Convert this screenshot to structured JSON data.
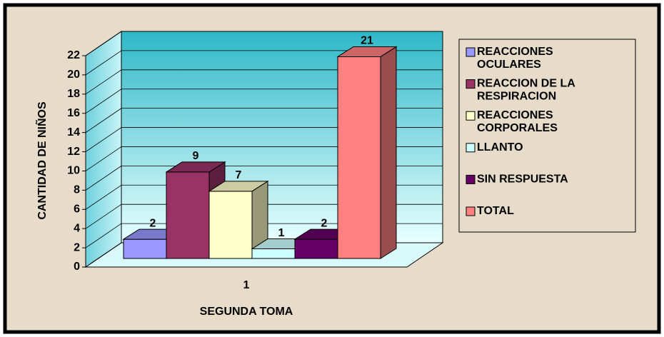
{
  "chart_data": {
    "type": "bar3d",
    "xlabel": "SEGUNDA TOMA",
    "ylabel": "CANTIDAD DE NIÑOS",
    "categories": [
      "1"
    ],
    "series": [
      {
        "name": "REACCIONES OCULARES",
        "color": "#9999ff",
        "values": [
          2
        ]
      },
      {
        "name": "REACCION DE LA RESPIRACION",
        "color": "#993366",
        "values": [
          9
        ]
      },
      {
        "name": "REACCIONES CORPORALES",
        "color": "#ffffcc",
        "values": [
          7
        ]
      },
      {
        "name": "LLANTO",
        "color": "#ccffff",
        "values": [
          1
        ]
      },
      {
        "name": "SIN RESPUESTA",
        "color": "#660066",
        "values": [
          2
        ]
      },
      {
        "name": "TOTAL",
        "color": "#ff8080",
        "values": [
          21
        ]
      }
    ],
    "ylim": [
      0,
      22
    ],
    "yticks": [
      0,
      2,
      4,
      6,
      8,
      10,
      12,
      14,
      16,
      18,
      20,
      22
    ],
    "grid": true,
    "legend": "right"
  }
}
